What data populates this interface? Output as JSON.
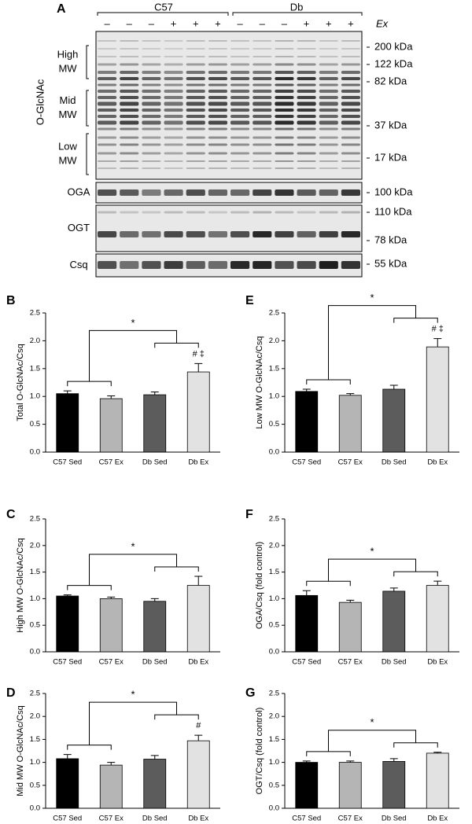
{
  "blot": {
    "panel": "A",
    "groups": [
      "C57",
      "Db"
    ],
    "treatment": "Ex",
    "signs": [
      "–",
      "–",
      "–",
      "+",
      "+",
      "+",
      "–",
      "–",
      "–",
      "+",
      "+",
      "+"
    ],
    "region_labels": [
      [
        "High",
        "MW"
      ],
      [
        "Mid",
        "MW"
      ],
      [
        "Low",
        "MW"
      ]
    ],
    "antibodies": [
      "O-GlcNAc",
      "OGA",
      "OGT",
      "Csq"
    ],
    "markers": [
      "200 kDa",
      "122 kDa",
      "82 kDa",
      "37 kDa",
      "17 kDa",
      "100 kDa",
      "110 kDa",
      "78 kDa",
      "55 kDa"
    ]
  },
  "chart_data": [
    {
      "type": "bar",
      "panel": "B",
      "ylabel": "Total O-GlcNAc/Csq",
      "categories": [
        "C57 Sed",
        "C57 Ex",
        "Db Sed",
        "Db Ex"
      ],
      "values": [
        1.05,
        0.96,
        1.03,
        1.44
      ],
      "errors": [
        0.05,
        0.05,
        0.05,
        0.15
      ],
      "colors": [
        "#000000",
        "#b5b5b5",
        "#5c5c5c",
        "#e2e2e2"
      ],
      "ylim": [
        0,
        2.5
      ],
      "yticks": [
        {
          "value": 0,
          "label": "0.0"
        },
        0.5,
        {
          "value": 1,
          "label": "1.0"
        },
        1.5,
        {
          "value": 2,
          "label": "2.0"
        },
        2.5
      ],
      "significance": "*",
      "annotation": "# ‡"
    },
    {
      "type": "bar",
      "panel": "C",
      "ylabel": "High MW O-GlcNAc/Csq",
      "categories": [
        "C57 Sed",
        "C57 Ex",
        "Db Sed",
        "Db Ex"
      ],
      "values": [
        1.05,
        1.0,
        0.95,
        1.25
      ],
      "errors": [
        0.02,
        0.03,
        0.05,
        0.17
      ],
      "colors": [
        "#000000",
        "#b5b5b5",
        "#5c5c5c",
        "#e2e2e2"
      ],
      "ylim": [
        0,
        2.5
      ],
      "yticks": [
        {
          "value": 0,
          "label": "0.0"
        },
        0.5,
        {
          "value": 1,
          "label": "1.0"
        },
        1.5,
        {
          "value": 2,
          "label": "2.0"
        },
        2.5
      ],
      "significance": "*"
    },
    {
      "type": "bar",
      "panel": "D",
      "ylabel": "Mid MW O-GlcNAc/Csq",
      "categories": [
        "C57 Sed",
        "C57 Ex",
        "Db Sed",
        "Db Ex"
      ],
      "values": [
        1.08,
        0.94,
        1.07,
        1.47
      ],
      "errors": [
        0.09,
        0.06,
        0.08,
        0.12
      ],
      "colors": [
        "#000000",
        "#b5b5b5",
        "#5c5c5c",
        "#e2e2e2"
      ],
      "ylim": [
        0,
        2.5
      ],
      "yticks": [
        {
          "value": 0,
          "label": "0.0"
        },
        0.5,
        {
          "value": 1,
          "label": "1.0"
        },
        1.5,
        {
          "value": 2,
          "label": "2.0"
        },
        2.5
      ],
      "significance": "*",
      "annotation": "#"
    },
    {
      "type": "bar",
      "panel": "E",
      "ylabel": "Low MW O-GlcNAc/Csq",
      "categories": [
        "C57 Sed",
        "C57 Ex",
        "Db Sed",
        "Db Ex"
      ],
      "values": [
        1.09,
        1.02,
        1.13,
        1.89
      ],
      "errors": [
        0.04,
        0.03,
        0.07,
        0.15
      ],
      "colors": [
        "#000000",
        "#b5b5b5",
        "#5c5c5c",
        "#e2e2e2"
      ],
      "ylim": [
        0,
        2.5
      ],
      "yticks": [
        {
          "value": 0,
          "label": "0.0"
        },
        0.5,
        {
          "value": 1,
          "label": "1.0"
        },
        1.5,
        {
          "value": 2,
          "label": "2.0"
        },
        2.5
      ],
      "significance": "*",
      "annotation": "# ‡"
    },
    {
      "type": "bar",
      "panel": "F",
      "ylabel": "OGA/Csq (fold control)",
      "categories": [
        "C57 Sed",
        "C57 Ex",
        "Db Sed",
        "Db Ex"
      ],
      "values": [
        1.06,
        0.93,
        1.14,
        1.25
      ],
      "errors": [
        0.09,
        0.04,
        0.06,
        0.08
      ],
      "colors": [
        "#000000",
        "#b5b5b5",
        "#5c5c5c",
        "#e2e2e2"
      ],
      "ylim": [
        0,
        2.5
      ],
      "yticks": [
        {
          "value": 0,
          "label": "0.0"
        },
        0.5,
        {
          "value": 1,
          "label": "1.0"
        },
        1.5,
        {
          "value": 2,
          "label": "2.0"
        },
        2.5
      ],
      "significance": "*"
    },
    {
      "type": "bar",
      "panel": "G",
      "ylabel": "OGT/Csq (fold control)",
      "categories": [
        "C57 Sed",
        "C57 Ex",
        "Db Sed",
        "Db Ex"
      ],
      "values": [
        1.0,
        1.0,
        1.02,
        1.2
      ],
      "errors": [
        0.03,
        0.03,
        0.06,
        0.02
      ],
      "colors": [
        "#000000",
        "#b5b5b5",
        "#5c5c5c",
        "#e2e2e2"
      ],
      "ylim": [
        0,
        2.5
      ],
      "yticks": [
        {
          "value": 0,
          "label": "0.0"
        },
        0.5,
        {
          "value": 1,
          "label": "1.0"
        },
        1.5,
        {
          "value": 2,
          "label": "2.0"
        },
        2.5
      ],
      "significance": "*"
    }
  ]
}
